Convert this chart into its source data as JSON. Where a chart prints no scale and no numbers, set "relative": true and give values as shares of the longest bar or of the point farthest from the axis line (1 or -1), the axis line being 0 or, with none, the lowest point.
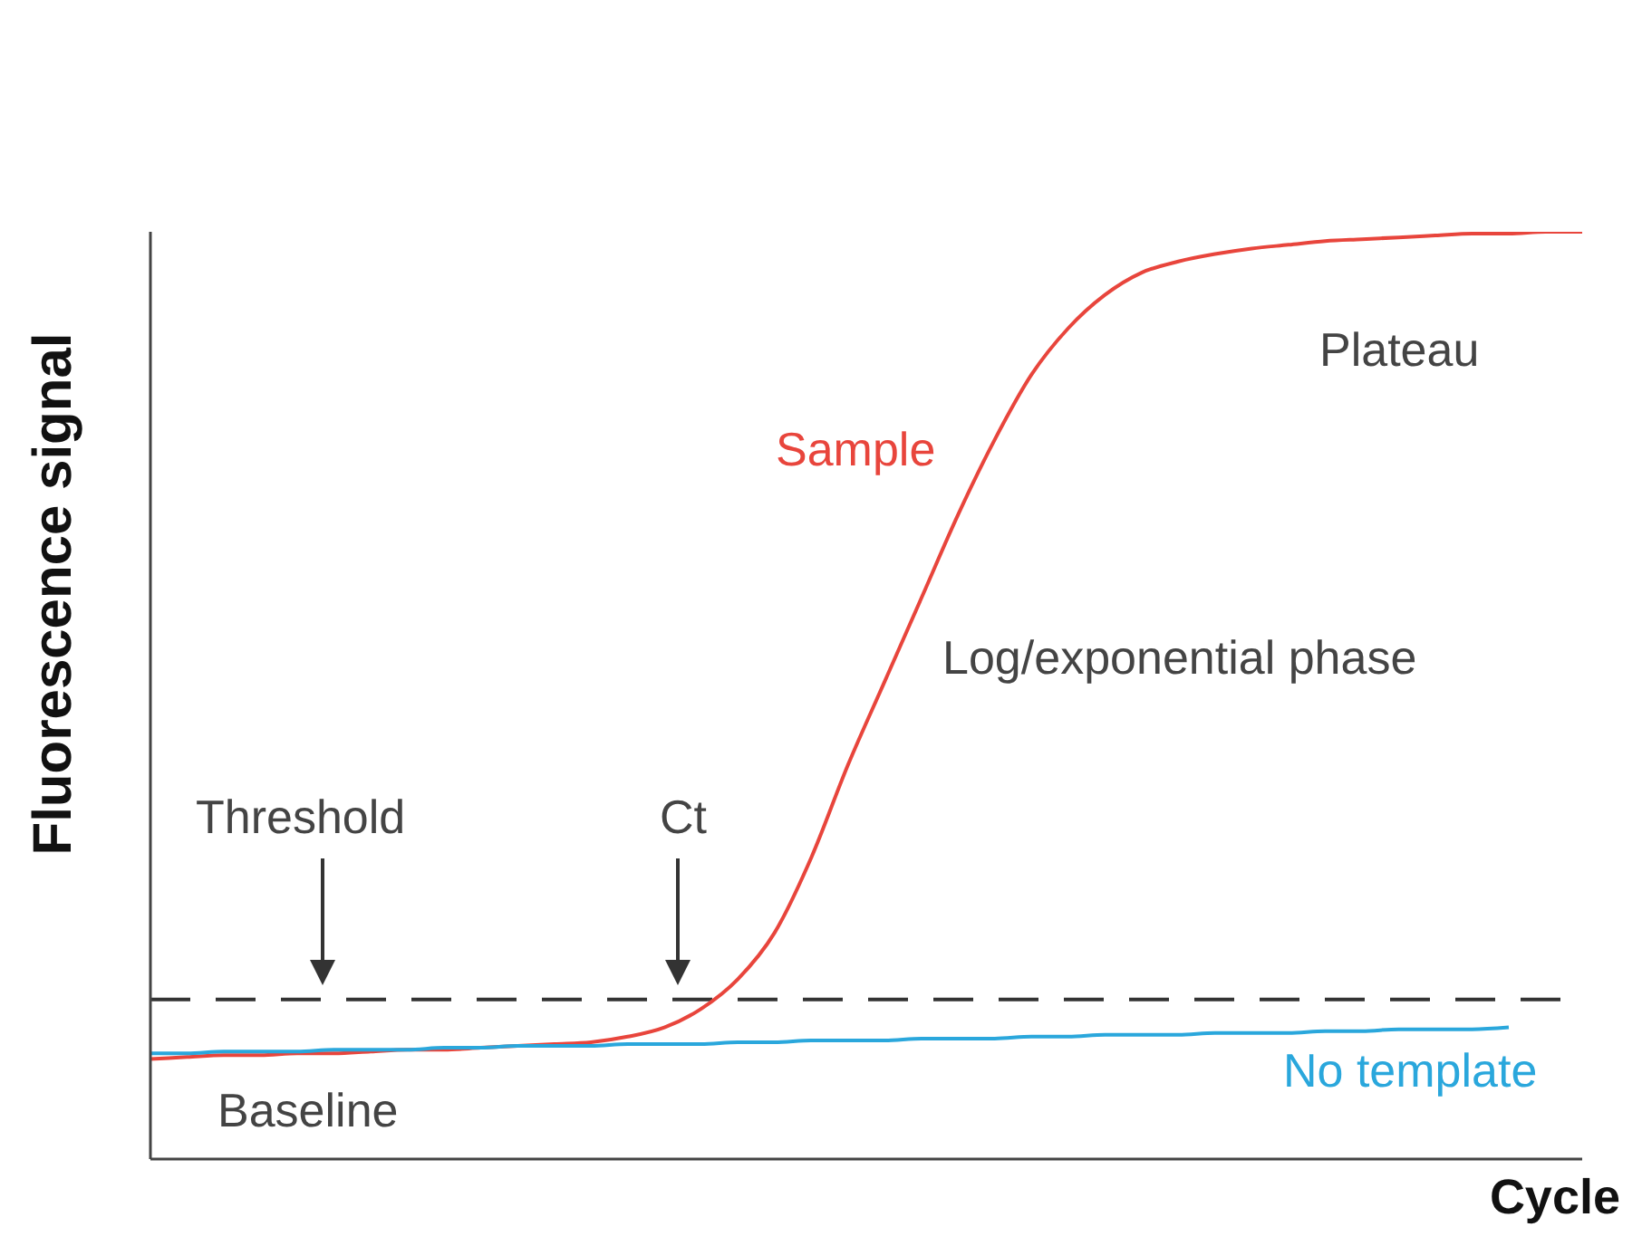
{
  "chart_data": {
    "type": "line",
    "relative": true,
    "xlabel": "Cycle",
    "ylabel": "Fluorescence signal",
    "marker": "none",
    "categories": [
      null,
      null,
      null,
      null,
      null,
      null,
      null,
      null,
      null,
      null,
      null,
      null,
      null,
      null,
      null,
      null,
      null,
      null,
      null,
      null,
      null,
      null,
      null,
      null,
      null,
      null,
      null,
      null,
      null,
      null,
      null,
      null,
      null,
      null,
      null,
      null,
      null,
      null,
      null,
      null
    ],
    "series": [
      {
        "name": "Sample",
        "color": "#e8453c",
        "values": [
          0.108,
          0.11,
          0.112,
          0.112,
          0.114,
          0.114,
          0.116,
          0.118,
          0.118,
          0.12,
          0.122,
          0.124,
          0.126,
          0.132,
          0.142,
          0.162,
          0.194,
          0.244,
          0.325,
          0.425,
          0.515,
          0.605,
          0.695,
          0.776,
          0.846,
          0.896,
          0.932,
          0.956,
          0.968,
          0.976,
          0.982,
          0.986,
          0.99,
          0.992,
          0.994,
          0.996,
          0.998,
          0.998,
          1.0,
          1.0
        ]
      },
      {
        "name": "No template",
        "color": "#2aa7dc",
        "values": [
          0.114,
          0.114,
          0.116,
          0.116,
          0.116,
          0.118,
          0.118,
          0.118,
          0.12,
          0.12,
          0.122,
          0.122,
          0.122,
          0.124,
          0.124,
          0.124,
          0.126,
          0.126,
          0.128,
          0.128,
          0.128,
          0.13,
          0.13,
          0.13,
          0.132,
          0.132,
          0.134,
          0.134,
          0.134,
          0.136,
          0.136,
          0.136,
          0.138,
          0.138,
          0.14,
          0.14,
          0.14,
          0.142,
          null,
          null
        ]
      }
    ],
    "ref_lines": [
      {
        "axis": "y",
        "value": 0.172,
        "color": "#333333",
        "line_style": "dashed"
      }
    ],
    "annotations": [
      "Threshold",
      "Ct",
      "Plateau",
      "Log/exponential phase",
      "Baseline"
    ]
  }
}
